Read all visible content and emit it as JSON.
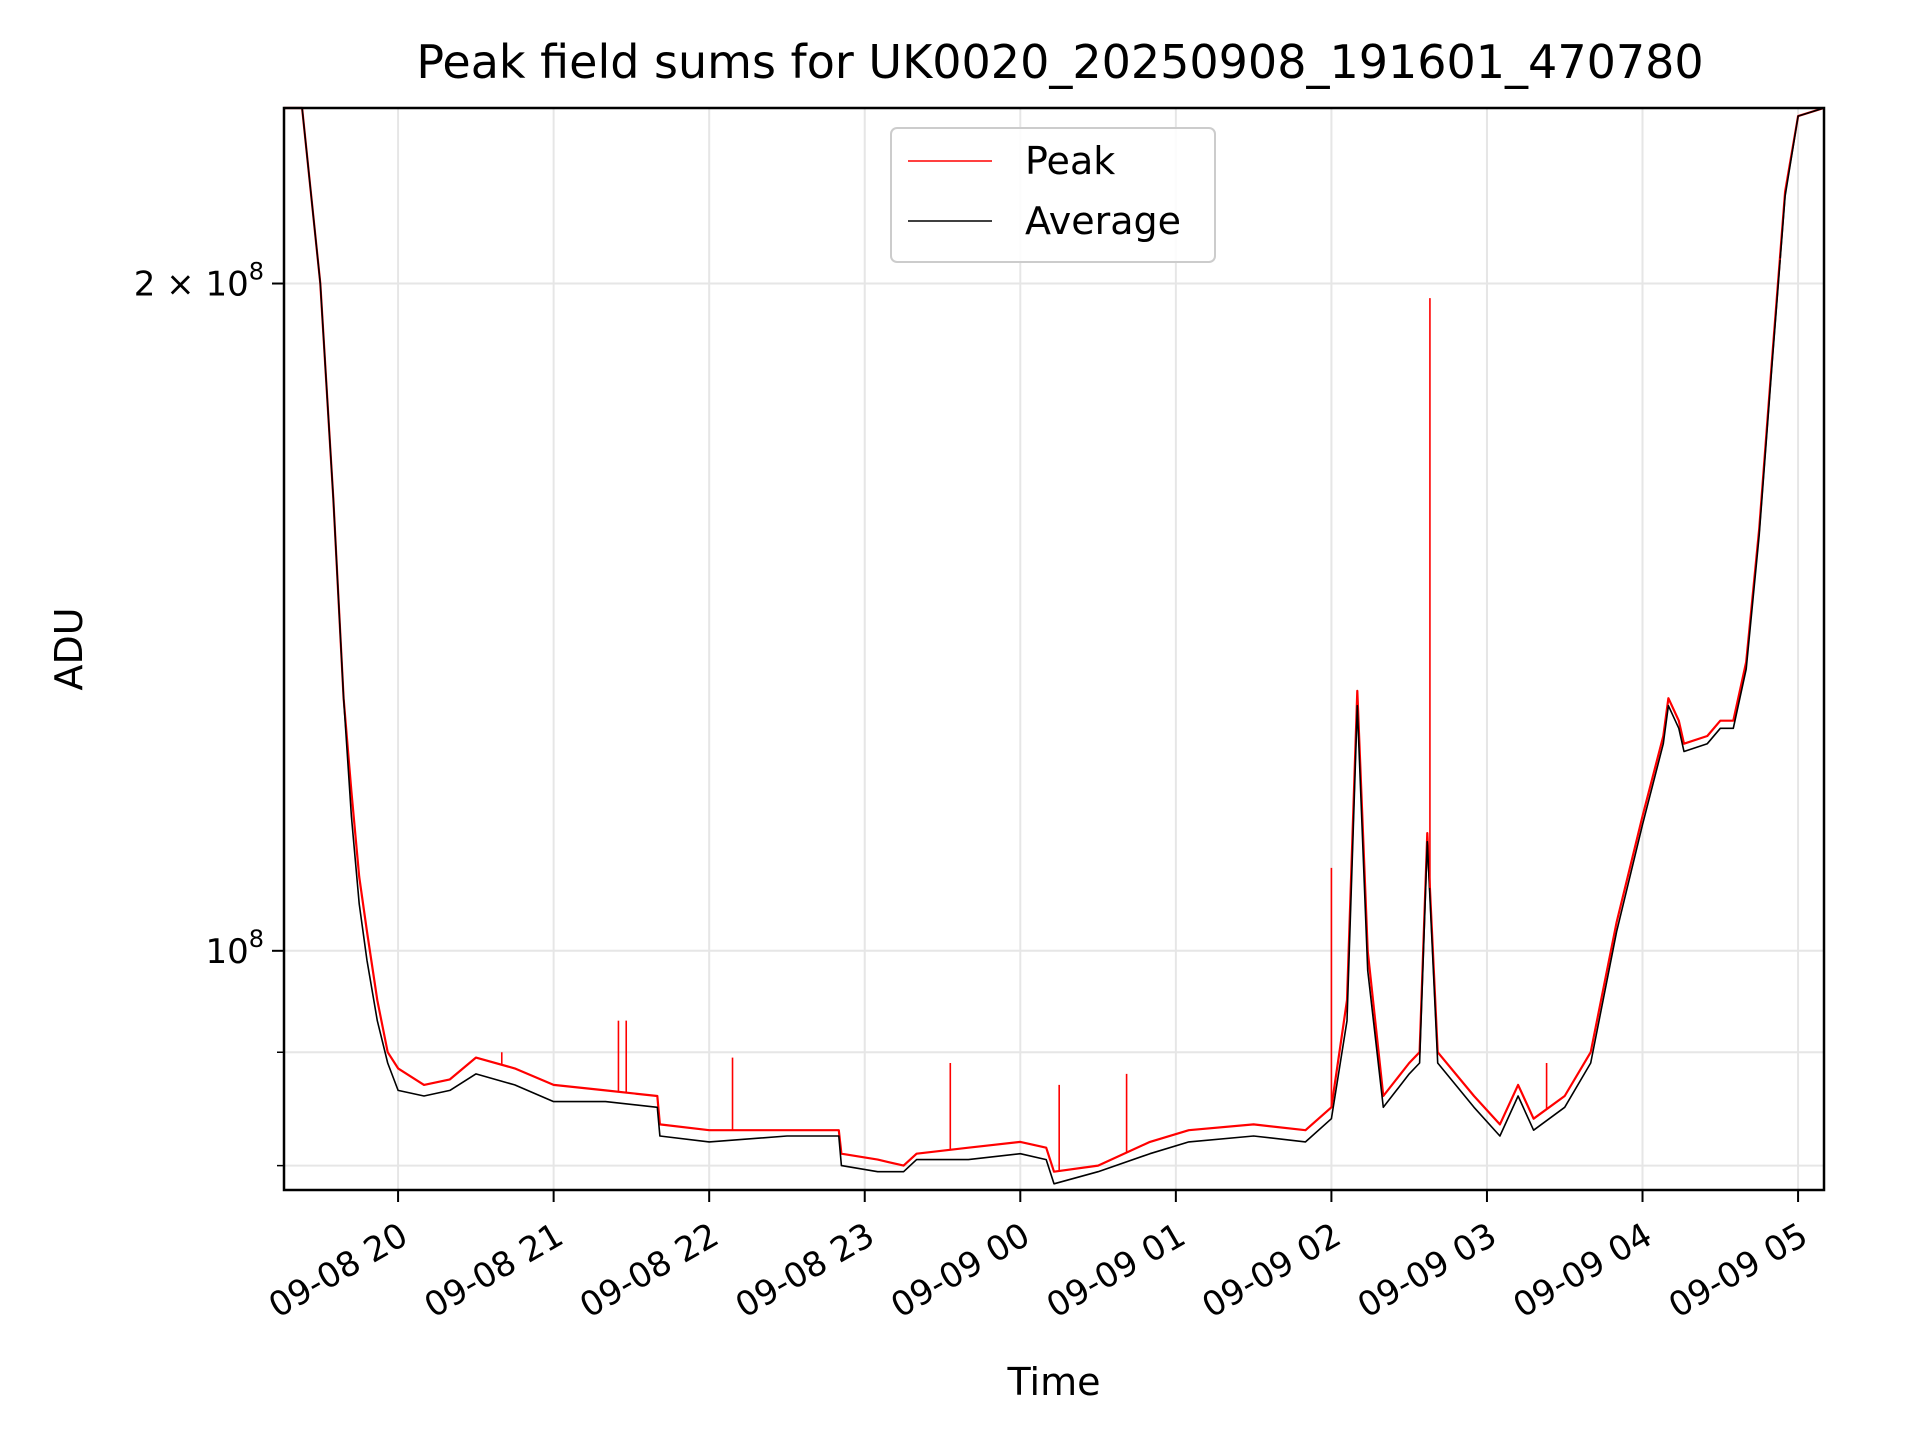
{
  "chart_data": {
    "type": "line",
    "title": "Peak field sums for UK0020_20250908_191601_470780",
    "xlabel": "Time",
    "ylabel": "ADU",
    "yscale": "log",
    "grid": true,
    "legend_position": "top-center",
    "xlim": [
      "2025-09-08 19:16",
      "2025-09-09 05:10"
    ],
    "ylim": [
      78000000.0,
      240000000.0
    ],
    "x_ticks": [
      "09-08 20",
      "09-08 21",
      "09-08 22",
      "09-08 23",
      "09-09 00",
      "09-09 01",
      "09-09 02",
      "09-09 03",
      "09-09 04",
      "09-09 05"
    ],
    "x_tick_times": [
      "2025-09-08 20:00",
      "2025-09-08 21:00",
      "2025-09-08 22:00",
      "2025-09-08 23:00",
      "2025-09-09 00:00",
      "2025-09-09 01:00",
      "2025-09-09 02:00",
      "2025-09-09 03:00",
      "2025-09-09 04:00",
      "2025-09-09 05:00"
    ],
    "y_ticks": [
      {
        "value": 200000000,
        "mantissa": "2",
        "times": "×",
        "base": "10",
        "exp": "8"
      },
      {
        "value": 100000000,
        "mantissa": "",
        "times": "",
        "base": "10",
        "exp": "8"
      }
    ],
    "y_minor_ticks": [
      80000000,
      90000000
    ],
    "series": [
      {
        "name": "Peak",
        "color": "#ff0000",
        "points": [
          [
            "2025-09-08 19:16",
            240000000.0
          ],
          [
            "2025-09-08 19:23",
            240000000.0
          ],
          [
            "2025-09-08 19:30",
            200000000.0
          ],
          [
            "2025-09-08 19:35",
            160000000.0
          ],
          [
            "2025-09-08 19:39",
            130000000.0
          ],
          [
            "2025-09-08 19:42",
            118000000.0
          ],
          [
            "2025-09-08 19:45",
            108000000.0
          ],
          [
            "2025-09-08 19:48",
            102000000.0
          ],
          [
            "2025-09-08 19:52",
            95000000.0
          ],
          [
            "2025-09-08 19:56",
            90000000.0
          ],
          [
            "2025-09-08 20:00",
            88500000.0
          ],
          [
            "2025-09-08 20:10",
            87000000.0
          ],
          [
            "2025-09-08 20:20",
            87500000.0
          ],
          [
            "2025-09-08 20:30",
            89500000.0
          ],
          [
            "2025-09-08 20:45",
            88500000.0
          ],
          [
            "2025-09-08 21:00",
            87000000.0
          ],
          [
            "2025-09-08 21:20",
            86500000.0
          ],
          [
            "2025-09-08 21:40",
            86000000.0
          ],
          [
            "2025-09-08 21:41",
            83500000.0
          ],
          [
            "2025-09-08 22:00",
            83000000.0
          ],
          [
            "2025-09-08 22:30",
            83000000.0
          ],
          [
            "2025-09-08 22:50",
            83000000.0
          ],
          [
            "2025-09-08 22:51",
            81000000.0
          ],
          [
            "2025-09-08 23:05",
            80500000.0
          ],
          [
            "2025-09-08 23:15",
            80000000.0
          ],
          [
            "2025-09-08 23:20",
            81000000.0
          ],
          [
            "2025-09-08 23:40",
            81500000.0
          ],
          [
            "2025-09-09 00:00",
            82000000.0
          ],
          [
            "2025-09-09 00:10",
            81500000.0
          ],
          [
            "2025-09-09 00:13",
            79500000.0
          ],
          [
            "2025-09-09 00:30",
            80000000.0
          ],
          [
            "2025-09-09 00:50",
            82000000.0
          ],
          [
            "2025-09-09 01:05",
            83000000.0
          ],
          [
            "2025-09-09 01:30",
            83500000.0
          ],
          [
            "2025-09-09 01:50",
            83000000.0
          ],
          [
            "2025-09-09 02:00",
            85000000.0
          ],
          [
            "2025-09-09 02:06",
            95000000.0
          ],
          [
            "2025-09-09 02:10",
            131000000.0
          ],
          [
            "2025-09-09 02:14",
            100000000.0
          ],
          [
            "2025-09-09 02:20",
            86000000.0
          ],
          [
            "2025-09-09 02:30",
            89000000.0
          ],
          [
            "2025-09-09 02:34",
            90000000.0
          ],
          [
            "2025-09-09 02:37",
            113000000.0
          ],
          [
            "2025-09-09 02:41",
            90000000.0
          ],
          [
            "2025-09-09 02:55",
            86000000.0
          ],
          [
            "2025-09-09 03:05",
            83500000.0
          ],
          [
            "2025-09-09 03:12",
            87000000.0
          ],
          [
            "2025-09-09 03:18",
            84000000.0
          ],
          [
            "2025-09-09 03:30",
            86000000.0
          ],
          [
            "2025-09-09 03:40",
            90000000.0
          ],
          [
            "2025-09-09 03:50",
            103000000.0
          ],
          [
            "2025-09-09 04:00",
            115000000.0
          ],
          [
            "2025-09-09 04:08",
            125000000.0
          ],
          [
            "2025-09-09 04:10",
            130000000.0
          ],
          [
            "2025-09-09 04:14",
            127000000.0
          ],
          [
            "2025-09-09 04:16",
            124000000.0
          ],
          [
            "2025-09-09 04:25",
            125000000.0
          ],
          [
            "2025-09-09 04:30",
            127000000.0
          ],
          [
            "2025-09-09 04:35",
            127000000.0
          ],
          [
            "2025-09-09 04:40",
            135000000.0
          ],
          [
            "2025-09-09 04:45",
            155000000.0
          ],
          [
            "2025-09-09 04:50",
            185000000.0
          ],
          [
            "2025-09-09 04:55",
            220000000.0
          ],
          [
            "2025-09-09 05:00",
            238000000.0
          ],
          [
            "2025-09-09 05:10",
            240000000.0
          ]
        ],
        "spikes": [
          [
            "2025-09-09 02:38",
            197000000.0
          ],
          [
            "2025-09-09 02:00",
            109000000.0
          ],
          [
            "2025-09-09 04:53",
            205000000.0
          ],
          [
            "2025-09-08 21:25",
            93000000.0
          ],
          [
            "2025-09-08 21:28",
            93000000.0
          ],
          [
            "2025-09-08 20:40",
            90000000.0
          ],
          [
            "2025-09-08 22:09",
            89500000.0
          ],
          [
            "2025-09-08 23:33",
            89000000.0
          ],
          [
            "2025-09-09 00:15",
            87000000.0
          ],
          [
            "2025-09-09 00:41",
            88000000.0
          ],
          [
            "2025-09-09 03:23",
            89000000.0
          ]
        ]
      },
      {
        "name": "Average",
        "color": "#000000",
        "points": [
          [
            "2025-09-08 19:16",
            240000000.0
          ],
          [
            "2025-09-08 19:23",
            240000000.0
          ],
          [
            "2025-09-08 19:30",
            200000000.0
          ],
          [
            "2025-09-08 19:35",
            160000000.0
          ],
          [
            "2025-09-08 19:39",
            130000000.0
          ],
          [
            "2025-09-08 19:42",
            115000000.0
          ],
          [
            "2025-09-08 19:45",
            105000000.0
          ],
          [
            "2025-09-08 19:48",
            99000000.0
          ],
          [
            "2025-09-08 19:52",
            93000000.0
          ],
          [
            "2025-09-08 19:56",
            89000000.0
          ],
          [
            "2025-09-08 20:00",
            86500000.0
          ],
          [
            "2025-09-08 20:10",
            86000000.0
          ],
          [
            "2025-09-08 20:20",
            86500000.0
          ],
          [
            "2025-09-08 20:30",
            88000000.0
          ],
          [
            "2025-09-08 20:45",
            87000000.0
          ],
          [
            "2025-09-08 21:00",
            85500000.0
          ],
          [
            "2025-09-08 21:20",
            85500000.0
          ],
          [
            "2025-09-08 21:40",
            85000000.0
          ],
          [
            "2025-09-08 21:41",
            82500000.0
          ],
          [
            "2025-09-08 22:00",
            82000000.0
          ],
          [
            "2025-09-08 22:30",
            82500000.0
          ],
          [
            "2025-09-08 22:50",
            82500000.0
          ],
          [
            "2025-09-08 22:51",
            80000000.0
          ],
          [
            "2025-09-08 23:05",
            79500000.0
          ],
          [
            "2025-09-08 23:15",
            79500000.0
          ],
          [
            "2025-09-08 23:20",
            80500000.0
          ],
          [
            "2025-09-08 23:40",
            80500000.0
          ],
          [
            "2025-09-09 00:00",
            81000000.0
          ],
          [
            "2025-09-09 00:10",
            80500000.0
          ],
          [
            "2025-09-09 00:13",
            78500000.0
          ],
          [
            "2025-09-09 00:30",
            79500000.0
          ],
          [
            "2025-09-09 00:50",
            81000000.0
          ],
          [
            "2025-09-09 01:05",
            82000000.0
          ],
          [
            "2025-09-09 01:30",
            82500000.0
          ],
          [
            "2025-09-09 01:50",
            82000000.0
          ],
          [
            "2025-09-09 02:00",
            84000000.0
          ],
          [
            "2025-09-09 02:06",
            93000000.0
          ],
          [
            "2025-09-09 02:10",
            129000000.0
          ],
          [
            "2025-09-09 02:14",
            98000000.0
          ],
          [
            "2025-09-09 02:20",
            85000000.0
          ],
          [
            "2025-09-09 02:30",
            88000000.0
          ],
          [
            "2025-09-09 02:34",
            89000000.0
          ],
          [
            "2025-09-09 02:37",
            112000000.0
          ],
          [
            "2025-09-09 02:41",
            89000000.0
          ],
          [
            "2025-09-09 02:55",
            85000000.0
          ],
          [
            "2025-09-09 03:05",
            82500000.0
          ],
          [
            "2025-09-09 03:12",
            86000000.0
          ],
          [
            "2025-09-09 03:18",
            83000000.0
          ],
          [
            "2025-09-09 03:30",
            85000000.0
          ],
          [
            "2025-09-09 03:40",
            89000000.0
          ],
          [
            "2025-09-09 03:50",
            102000000.0
          ],
          [
            "2025-09-09 04:00",
            114000000.0
          ],
          [
            "2025-09-09 04:08",
            124000000.0
          ],
          [
            "2025-09-09 04:10",
            129000000.0
          ],
          [
            "2025-09-09 04:14",
            126000000.0
          ],
          [
            "2025-09-09 04:16",
            123000000.0
          ],
          [
            "2025-09-09 04:25",
            124000000.0
          ],
          [
            "2025-09-09 04:30",
            126000000.0
          ],
          [
            "2025-09-09 04:35",
            126000000.0
          ],
          [
            "2025-09-09 04:40",
            134000000.0
          ],
          [
            "2025-09-09 04:45",
            154000000.0
          ],
          [
            "2025-09-09 04:50",
            184000000.0
          ],
          [
            "2025-09-09 04:55",
            219000000.0
          ],
          [
            "2025-09-09 05:00",
            238000000.0
          ],
          [
            "2025-09-09 05:10",
            240000000.0
          ]
        ]
      }
    ]
  }
}
